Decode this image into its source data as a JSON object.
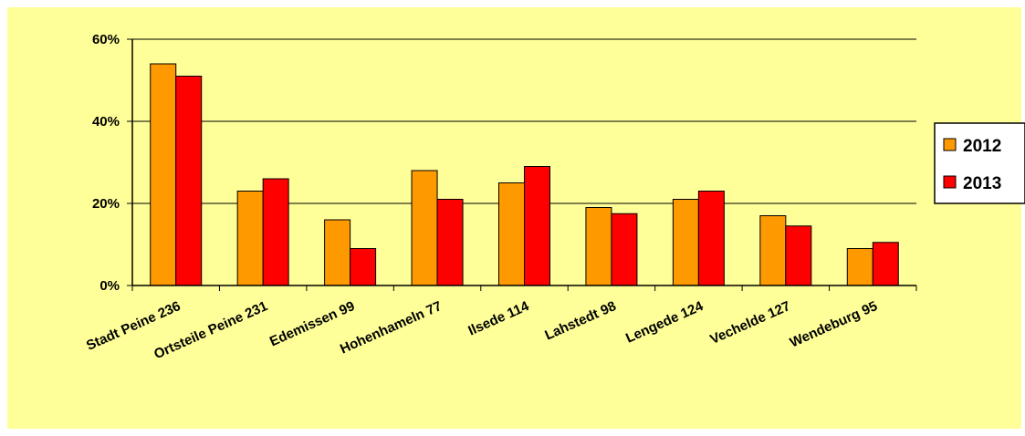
{
  "chart_data": {
    "type": "bar",
    "categories": [
      "Stadt Peine 236",
      "Ortsteile Peine 231",
      "Edemissen 99",
      "Hohenhameln 77",
      "Ilsede 114",
      "Lahstedt 98",
      "Lengede 124",
      "Vechelde 127",
      "Wendeburg 95"
    ],
    "series": [
      {
        "name": "2012",
        "color": "#ff9900",
        "values": [
          54,
          23,
          16,
          28,
          25,
          19,
          21,
          17,
          9
        ]
      },
      {
        "name": "2013",
        "color": "#ff0000",
        "values": [
          51,
          26,
          9,
          21,
          29,
          17.5,
          23,
          14.5,
          10.5
        ]
      }
    ],
    "yticks": [
      "0%",
      "20%",
      "40%",
      "60%"
    ],
    "ylim": [
      0,
      60
    ],
    "grid": true,
    "legend": "right",
    "background": "#ffff99"
  }
}
